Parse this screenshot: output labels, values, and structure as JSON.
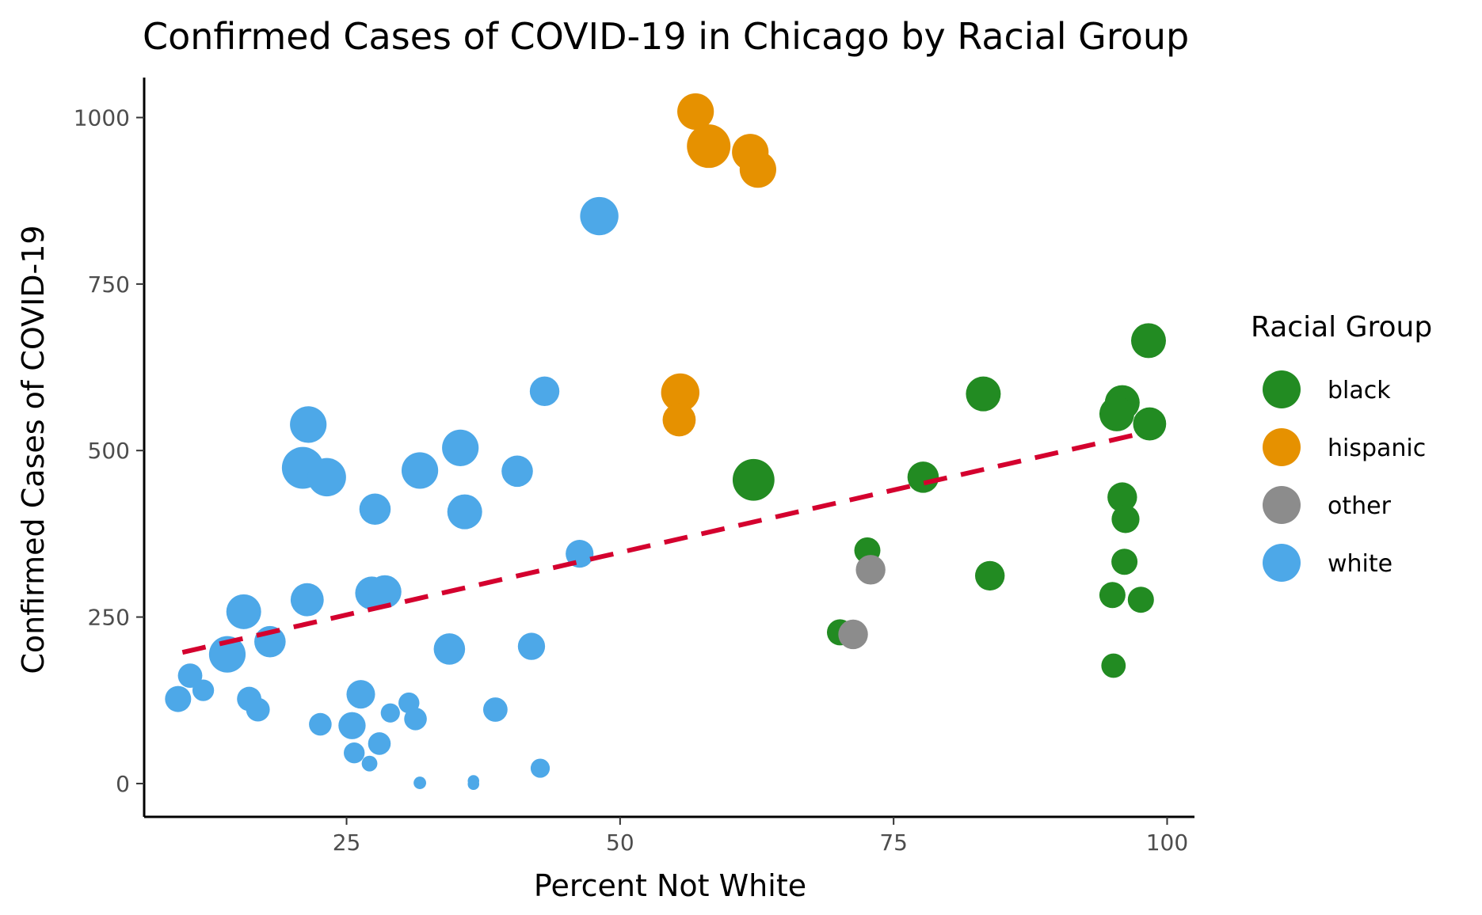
{
  "chart_data": {
    "type": "scatter",
    "title": "Confirmed Cases of COVID-19 in Chicago by Racial Group",
    "xlabel": "Percent Not White",
    "ylabel": "Confirmed Cases of COVID-19",
    "xlim": [
      6.5,
      102.5
    ],
    "ylim": [
      -50,
      1060
    ],
    "x_ticks": [
      25,
      50,
      75,
      100
    ],
    "y_ticks": [
      0,
      250,
      500,
      750,
      1000
    ],
    "grid": false,
    "legend": {
      "title": "Racial Group",
      "position": "right",
      "entries": [
        "black",
        "hispanic",
        "other",
        "white"
      ]
    },
    "colors": {
      "black": "#228B22",
      "hispanic": "#E69100",
      "other": "#8C8C8C",
      "white": "#4DA8E8",
      "trend": "#D4002E"
    },
    "size_note": "point area varies",
    "trend_line": {
      "style": "dashed",
      "x": [
        10,
        98
      ],
      "y": [
        197,
        527
      ]
    },
    "series": [
      {
        "name": "black",
        "points": [
          [
            98.3,
            665,
            1.0
          ],
          [
            83.2,
            585,
            1.0
          ],
          [
            95.9,
            572,
            1.0
          ],
          [
            95.4,
            555,
            1.0
          ],
          [
            98.4,
            540,
            0.95
          ],
          [
            62.2,
            456,
            1.2
          ],
          [
            77.7,
            460,
            0.9
          ],
          [
            95.9,
            430,
            0.85
          ],
          [
            96.2,
            397,
            0.8
          ],
          [
            72.6,
            350,
            0.75
          ],
          [
            96.1,
            333,
            0.75
          ],
          [
            83.8,
            312,
            0.85
          ],
          [
            95.0,
            283,
            0.75
          ],
          [
            97.6,
            276,
            0.75
          ],
          [
            70.1,
            227,
            0.75
          ],
          [
            95.1,
            177,
            0.7
          ]
        ]
      },
      {
        "name": "hispanic",
        "points": [
          [
            56.9,
            1009,
            1.05
          ],
          [
            58.1,
            957,
            1.25
          ],
          [
            61.9,
            948,
            1.05
          ],
          [
            62.6,
            922,
            1.05
          ],
          [
            55.5,
            587,
            1.1
          ],
          [
            55.4,
            546,
            0.95
          ]
        ]
      },
      {
        "name": "other",
        "points": [
          [
            72.9,
            321,
            0.85
          ],
          [
            71.3,
            224,
            0.85
          ]
        ]
      },
      {
        "name": "white",
        "points": [
          [
            48.1,
            852,
            1.1
          ],
          [
            43.1,
            589,
            0.85
          ],
          [
            21.5,
            539,
            1.05
          ],
          [
            35.4,
            504,
            1.05
          ],
          [
            21.0,
            474,
            1.2
          ],
          [
            23.2,
            460,
            1.1
          ],
          [
            31.7,
            470,
            1.05
          ],
          [
            40.6,
            469,
            0.9
          ],
          [
            27.6,
            412,
            0.9
          ],
          [
            35.8,
            408,
            1.0
          ],
          [
            46.3,
            345,
            0.8
          ],
          [
            15.6,
            258,
            1.0
          ],
          [
            21.4,
            276,
            0.95
          ],
          [
            27.3,
            286,
            0.95
          ],
          [
            28.5,
            288,
            0.95
          ],
          [
            18.0,
            213,
            0.9
          ],
          [
            14.1,
            194,
            1.05
          ],
          [
            34.4,
            202,
            0.9
          ],
          [
            41.9,
            206,
            0.78
          ],
          [
            10.7,
            162,
            0.7
          ],
          [
            9.6,
            127,
            0.75
          ],
          [
            11.9,
            140,
            0.62
          ],
          [
            16.1,
            127,
            0.7
          ],
          [
            16.9,
            111,
            0.68
          ],
          [
            26.3,
            134,
            0.82
          ],
          [
            30.7,
            121,
            0.6
          ],
          [
            29.0,
            106,
            0.55
          ],
          [
            31.3,
            97,
            0.65
          ],
          [
            38.6,
            111,
            0.7
          ],
          [
            22.6,
            89,
            0.65
          ],
          [
            25.5,
            87,
            0.78
          ],
          [
            28.0,
            60,
            0.65
          ],
          [
            25.7,
            46,
            0.6
          ],
          [
            27.1,
            30,
            0.45
          ],
          [
            42.7,
            23,
            0.55
          ],
          [
            31.7,
            1,
            0.36
          ],
          [
            36.6,
            4,
            0.33
          ],
          [
            36.6,
            -1,
            0.33
          ]
        ]
      }
    ]
  }
}
